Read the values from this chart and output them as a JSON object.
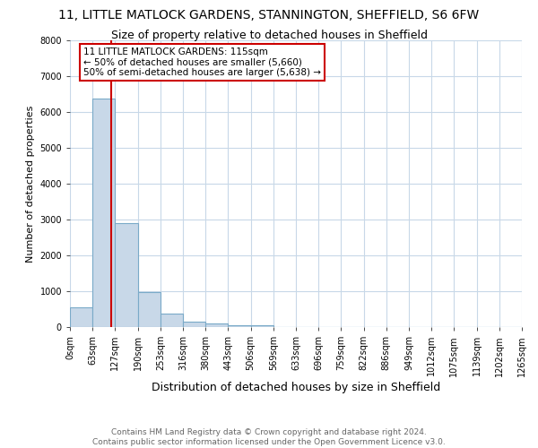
{
  "title": "11, LITTLE MATLOCK GARDENS, STANNINGTON, SHEFFIELD, S6 6FW",
  "subtitle": "Size of property relative to detached houses in Sheffield",
  "xlabel": "Distribution of detached houses by size in Sheffield",
  "ylabel": "Number of detached properties",
  "bin_labels": [
    "0sqm",
    "63sqm",
    "127sqm",
    "190sqm",
    "253sqm",
    "316sqm",
    "380sqm",
    "443sqm",
    "506sqm",
    "569sqm",
    "633sqm",
    "696sqm",
    "759sqm",
    "822sqm",
    "886sqm",
    "949sqm",
    "1012sqm",
    "1075sqm",
    "1139sqm",
    "1202sqm",
    "1265sqm"
  ],
  "bar_values": [
    560,
    6380,
    2900,
    970,
    370,
    160,
    110,
    60,
    40,
    0,
    0,
    0,
    0,
    0,
    0,
    0,
    0,
    0,
    0,
    0
  ],
  "bar_color": "#c8d8e8",
  "bar_edge_color": "#7aaac8",
  "ylim": [
    0,
    8000
  ],
  "yticks": [
    0,
    1000,
    2000,
    3000,
    4000,
    5000,
    6000,
    7000,
    8000
  ],
  "property_line_x": 1.825,
  "property_line_color": "#cc0000",
  "annotation_text": "11 LITTLE MATLOCK GARDENS: 115sqm\n← 50% of detached houses are smaller (5,660)\n50% of semi-detached houses are larger (5,638) →",
  "annotation_box_color": "#cc0000",
  "footer_line1": "Contains HM Land Registry data © Crown copyright and database right 2024.",
  "footer_line2": "Contains public sector information licensed under the Open Government Licence v3.0.",
  "background_color": "#ffffff",
  "grid_color": "#c8d8e8",
  "title_fontsize": 10,
  "subtitle_fontsize": 9,
  "xlabel_fontsize": 9,
  "ylabel_fontsize": 8,
  "tick_fontsize": 7,
  "footer_fontsize": 6.5,
  "annot_fontsize": 7.5
}
